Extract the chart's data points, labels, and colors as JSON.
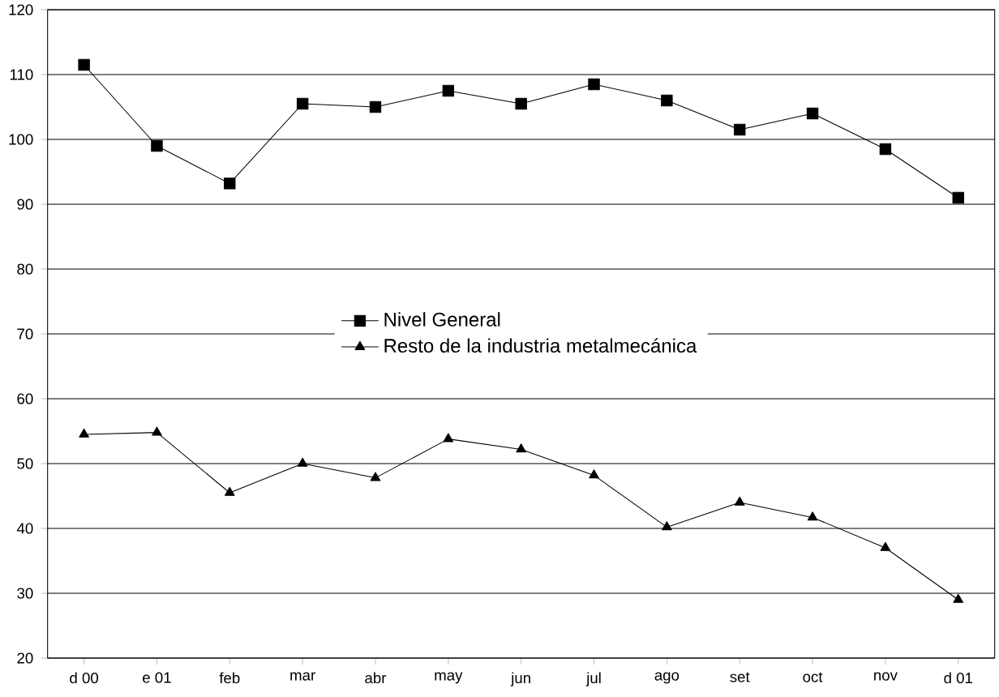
{
  "chart_data": {
    "type": "line",
    "categories": [
      "d 00",
      "e 01",
      "feb",
      "mar",
      "abr",
      "may",
      "jun",
      "jul",
      "ago",
      "set",
      "oct",
      "nov",
      "d 01"
    ],
    "series": [
      {
        "name": "Nivel  General",
        "color": "#000000",
        "marker": "square",
        "values": [
          111.5,
          99,
          93.2,
          105.5,
          105,
          107.5,
          105.5,
          108.5,
          106,
          101.5,
          104,
          98.5,
          91
        ]
      },
      {
        "name": "Resto de la industria metalmecánica",
        "color": "#000000",
        "marker": "triangle",
        "values": [
          54.5,
          54.8,
          45.5,
          50,
          47.8,
          53.8,
          52.2,
          48.2,
          40.2,
          44,
          41.7,
          37,
          29
        ]
      }
    ],
    "ylim": [
      20,
      120
    ],
    "yticks": [
      20,
      30,
      40,
      50,
      60,
      70,
      80,
      90,
      100,
      110,
      120
    ],
    "grid": "y",
    "legend": "center"
  }
}
